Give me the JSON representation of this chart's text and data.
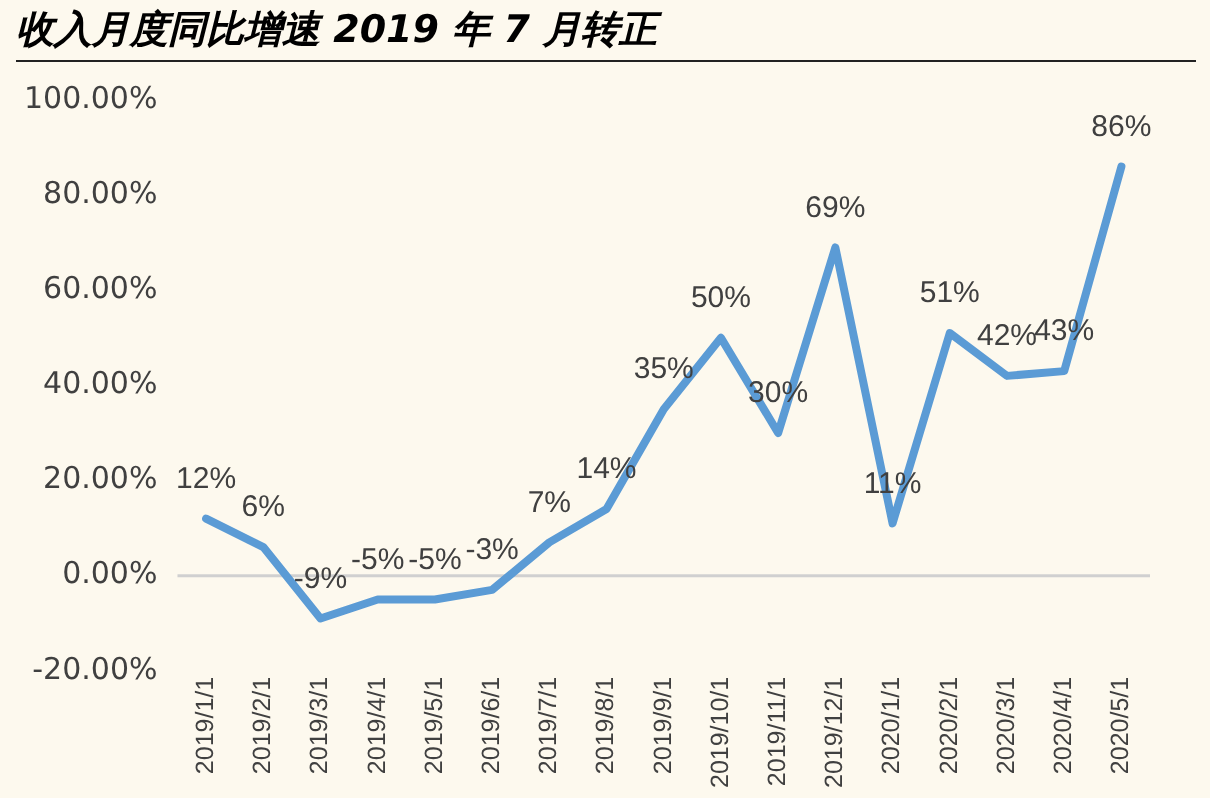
{
  "chart_data": {
    "type": "line",
    "title": "收入月度同比增速 2019 年 7 月转正",
    "categories": [
      "2019/1/1",
      "2019/2/1",
      "2019/3/1",
      "2019/4/1",
      "2019/5/1",
      "2019/6/1",
      "2019/7/1",
      "2019/8/1",
      "2019/9/1",
      "2019/10/1",
      "2019/11/1",
      "2019/12/1",
      "2020/1/1",
      "2020/2/1",
      "2020/3/1",
      "2020/4/1",
      "2020/5/1"
    ],
    "series": [
      {
        "color": "#5b9bd5",
        "values": [
          12,
          6,
          -9,
          -5,
          -5,
          -3,
          7,
          14,
          35,
          50,
          30,
          69,
          11,
          51,
          42,
          43,
          86
        ],
        "value_labels": [
          "12%",
          "6%",
          "-9%",
          "-5%",
          "-5%",
          "-3%",
          "7%",
          "14%",
          "35%",
          "50%",
          "30%",
          "69%",
          "11%",
          "51%",
          "42%",
          "43%",
          "86%"
        ]
      }
    ],
    "ylim": [
      -20,
      100
    ],
    "yticks": [
      {
        "value": -20,
        "label": "-20.00%"
      },
      {
        "value": 0,
        "label": "0.00%"
      },
      {
        "value": 20,
        "label": "20.00%"
      },
      {
        "value": 40,
        "label": "40.00%"
      },
      {
        "value": 60,
        "label": "60.00%"
      },
      {
        "value": 80,
        "label": "80.00%"
      },
      {
        "value": 100,
        "label": "100.00%"
      }
    ],
    "ref_lines": [
      {
        "axis": "y",
        "value": 0,
        "color": "#d0d0d0"
      }
    ],
    "grid": false,
    "legend": false,
    "marker": "none",
    "line_style": "solid"
  }
}
